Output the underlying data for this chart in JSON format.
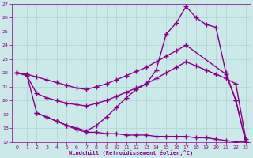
{
  "xlabel": "Windchill (Refroidissement éolien,°C)",
  "background_color": "#cce8e8",
  "grid_color": "#b0d8d8",
  "line_color": "#880088",
  "xlim": [
    -0.5,
    23.5
  ],
  "ylim": [
    17,
    27
  ],
  "yticks": [
    17,
    18,
    19,
    20,
    21,
    22,
    23,
    24,
    25,
    26,
    27
  ],
  "xticks": [
    0,
    1,
    2,
    3,
    4,
    5,
    6,
    7,
    8,
    9,
    10,
    11,
    12,
    13,
    14,
    15,
    16,
    17,
    18,
    19,
    20,
    21,
    22,
    23
  ],
  "line1_x": [
    0,
    1,
    2,
    3,
    4,
    5,
    6,
    7,
    8,
    9,
    10,
    11,
    12,
    13,
    14,
    15,
    16,
    17,
    21,
    22,
    23
  ],
  "line1_y": [
    22,
    21.9,
    21.7,
    21.5,
    21.3,
    21.1,
    20.9,
    20.8,
    21.0,
    21.2,
    21.5,
    21.8,
    22.1,
    22.4,
    22.8,
    23.2,
    23.6,
    24.0,
    21.9,
    20.0,
    17.0
  ],
  "line2_x": [
    2,
    3,
    4,
    5,
    6,
    7,
    8,
    9,
    10,
    11,
    12,
    13,
    14,
    15,
    16,
    17,
    18,
    19,
    20,
    21,
    22,
    23
  ],
  "line2_y": [
    19.1,
    18.8,
    18.5,
    18.2,
    18.0,
    17.8,
    18.2,
    18.8,
    19.5,
    20.2,
    20.8,
    21.2,
    22.2,
    24.8,
    25.6,
    26.8,
    26.0,
    25.5,
    25.3,
    22.0,
    20.0,
    17.0
  ],
  "line3_x": [
    0,
    1,
    2,
    3,
    4,
    5,
    6,
    7,
    8,
    9,
    10,
    11,
    12,
    13,
    14,
    15,
    16,
    17,
    18,
    19,
    20,
    21,
    22,
    23
  ],
  "line3_y": [
    22,
    21.8,
    20.5,
    20.2,
    20.0,
    19.8,
    19.7,
    19.6,
    19.8,
    20.0,
    20.3,
    20.6,
    20.9,
    21.2,
    21.6,
    22.0,
    22.4,
    22.8,
    22.5,
    22.2,
    21.9,
    21.6,
    21.2,
    17.2
  ],
  "line4_x": [
    0,
    1,
    2,
    3,
    4,
    5,
    6,
    7,
    8,
    9,
    10,
    11,
    12,
    13,
    14,
    15,
    16,
    17,
    18,
    19,
    20,
    21,
    22,
    23
  ],
  "line4_y": [
    22,
    21.9,
    19.1,
    18.8,
    18.5,
    18.2,
    17.9,
    17.7,
    17.7,
    17.6,
    17.6,
    17.5,
    17.5,
    17.5,
    17.4,
    17.4,
    17.4,
    17.4,
    17.3,
    17.3,
    17.2,
    17.1,
    17.0,
    17.0
  ],
  "marker": "+",
  "markersize": 4,
  "linewidth": 1.0
}
